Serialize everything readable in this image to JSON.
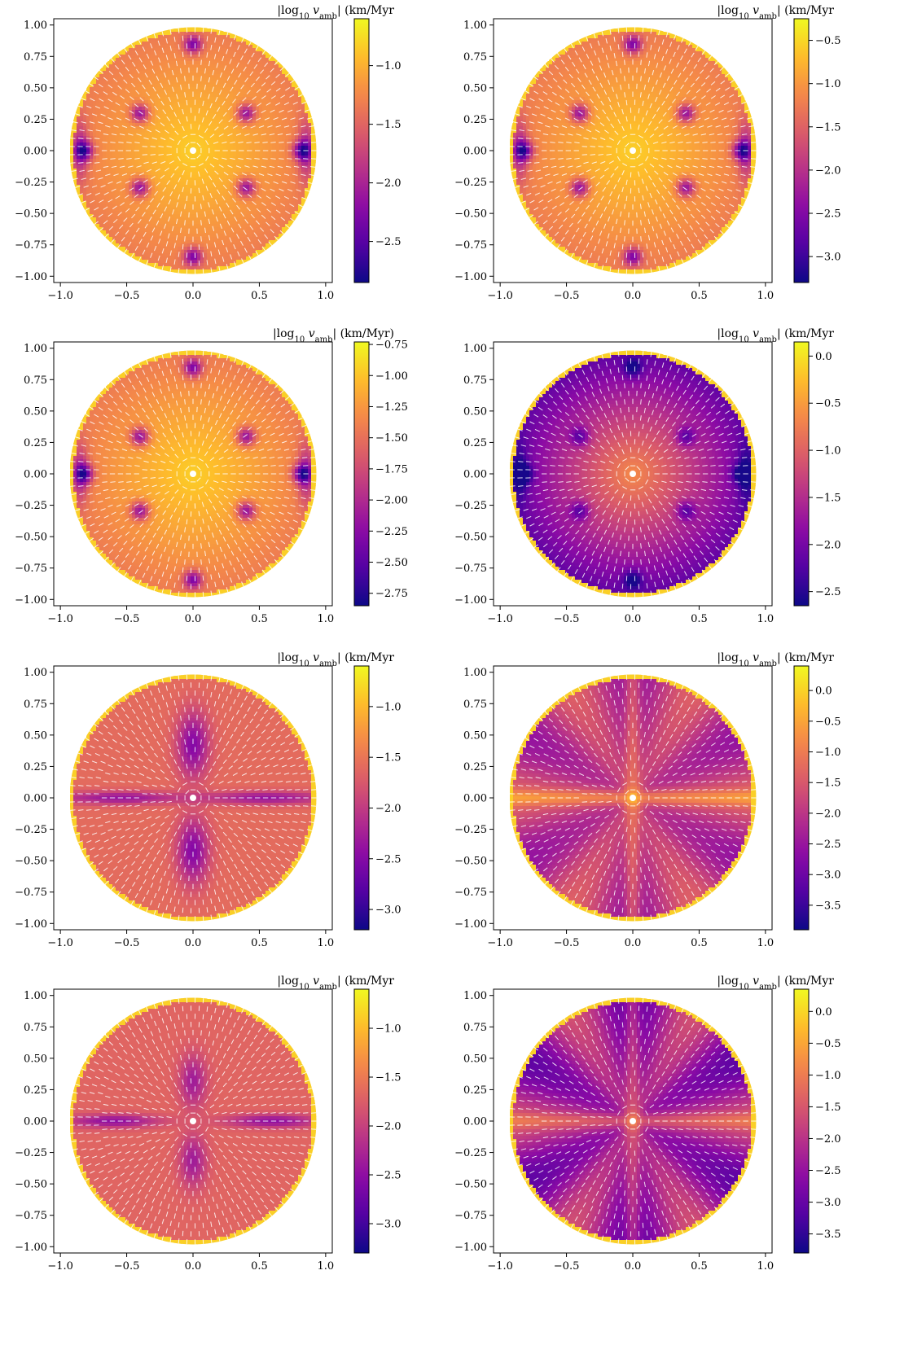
{
  "colormap": {
    "name": "plasma",
    "stops": [
      "#0d0887",
      "#5302a3",
      "#8b0aa5",
      "#b83289",
      "#db5c68",
      "#f48849",
      "#febd2a",
      "#f0f921"
    ]
  },
  "arrow_color": "#ffffff",
  "chart_data": [
    {
      "type": "heatmap",
      "panel": "row1-left",
      "colorbar_label": "|log10 v_amb| (km/Myr",
      "colorbar_range": [
        -2.85,
        -0.6
      ],
      "colorbar_ticks": [
        -1.0,
        -1.5,
        -2.0,
        -2.5
      ],
      "colorbar_tick_labels": [
        "−1.0",
        "−1.5",
        "−2.0",
        "−2.5"
      ],
      "x_ticks": [
        -1.0,
        -0.5,
        0.0,
        0.5,
        1.0
      ],
      "x_tick_labels": [
        "−1.0",
        "−0.5",
        "0.0",
        "0.5",
        "1.0"
      ],
      "y_ticks": [
        1.0,
        0.75,
        0.5,
        0.25,
        0.0,
        -0.25,
        -0.5,
        -0.75,
        -1.0
      ],
      "y_tick_labels": [
        "1.00",
        "0.75",
        "0.50",
        "0.25",
        "0.00",
        "−0.25",
        "−0.50",
        "−0.75",
        "−1.00"
      ],
      "xlim": [
        -1.05,
        1.05
      ],
      "ylim": [
        -1.05,
        1.05
      ],
      "disk_radius": 0.93,
      "pattern": "sixfold"
    },
    {
      "type": "heatmap",
      "panel": "row1-right",
      "colorbar_label": "|log10 v_amb| (km/Myr",
      "colorbar_range": [
        -3.3,
        -0.25
      ],
      "colorbar_ticks": [
        -0.5,
        -1.0,
        -1.5,
        -2.0,
        -2.5,
        -3.0
      ],
      "colorbar_tick_labels": [
        "−0.5",
        "−1.0",
        "−1.5",
        "−2.0",
        "−2.5",
        "−3.0"
      ],
      "x_ticks": [
        -1.0,
        -0.5,
        0.0,
        0.5,
        1.0
      ],
      "x_tick_labels": [
        "−1.0",
        "−0.5",
        "0.0",
        "0.5",
        "1.0"
      ],
      "y_ticks": [
        1.0,
        0.75,
        0.5,
        0.25,
        0.0,
        -0.25,
        -0.5,
        -0.75,
        -1.0
      ],
      "y_tick_labels": [
        "1.00",
        "0.75",
        "0.50",
        "0.25",
        "0.00",
        "−0.25",
        "−0.50",
        "−0.75",
        "−1.00"
      ],
      "xlim": [
        -1.05,
        1.05
      ],
      "ylim": [
        -1.05,
        1.05
      ],
      "disk_radius": 0.93,
      "pattern": "sixfold"
    },
    {
      "type": "heatmap",
      "panel": "row2-left",
      "colorbar_label": "|log10 v_amb| (km/Myr)",
      "colorbar_range": [
        -2.85,
        -0.73
      ],
      "colorbar_ticks": [
        -0.75,
        -1.0,
        -1.25,
        -1.5,
        -1.75,
        -2.0,
        -2.25,
        -2.5,
        -2.75
      ],
      "colorbar_tick_labels": [
        "−0.75",
        "−1.00",
        "−1.25",
        "−1.50",
        "−1.75",
        "−2.00",
        "−2.25",
        "−2.50",
        "−2.75"
      ],
      "x_ticks": [
        -1.0,
        -0.5,
        0.0,
        0.5,
        1.0
      ],
      "x_tick_labels": [
        "−1.0",
        "−0.5",
        "0.0",
        "0.5",
        "1.0"
      ],
      "y_ticks": [
        1.0,
        0.75,
        0.5,
        0.25,
        0.0,
        -0.25,
        -0.5,
        -0.75,
        -1.0
      ],
      "y_tick_labels": [
        "1.00",
        "0.75",
        "0.50",
        "0.25",
        "0.00",
        "−0.25",
        "−0.50",
        "−0.75",
        "−1.00"
      ],
      "xlim": [
        -1.05,
        1.05
      ],
      "ylim": [
        -1.05,
        1.05
      ],
      "disk_radius": 0.93,
      "pattern": "sixfold"
    },
    {
      "type": "heatmap",
      "panel": "row2-right",
      "colorbar_label": "|log10 v_amb| (km/Myr",
      "colorbar_range": [
        -2.65,
        0.15
      ],
      "colorbar_ticks": [
        0.0,
        -0.5,
        -1.0,
        -1.5,
        -2.0,
        -2.5
      ],
      "colorbar_tick_labels": [
        "0.0",
        "−0.5",
        "−1.0",
        "−1.5",
        "−2.0",
        "−2.5"
      ],
      "x_ticks": [
        -1.0,
        -0.5,
        0.0,
        0.5,
        1.0
      ],
      "x_tick_labels": [
        "−1.0",
        "−0.5",
        "0.0",
        "0.5",
        "1.0"
      ],
      "y_ticks": [
        1.0,
        0.75,
        0.5,
        0.25,
        0.0,
        -0.25,
        -0.5,
        -0.75,
        -1.0
      ],
      "y_tick_labels": [
        "1.00",
        "0.75",
        "0.50",
        "0.25",
        "0.00",
        "−0.25",
        "−0.50",
        "−0.75",
        "−1.00"
      ],
      "xlim": [
        -1.05,
        1.05
      ],
      "ylim": [
        -1.05,
        1.05
      ],
      "disk_radius": 0.93,
      "pattern": "sixfold-dim"
    },
    {
      "type": "heatmap",
      "panel": "row3-left",
      "colorbar_label": "|log10 v_amb| (km/Myr",
      "colorbar_range": [
        -3.2,
        -0.6
      ],
      "colorbar_ticks": [
        -1.0,
        -1.5,
        -2.0,
        -2.5,
        -3.0
      ],
      "colorbar_tick_labels": [
        "−1.0",
        "−1.5",
        "−2.0",
        "−2.5",
        "−3.0"
      ],
      "x_ticks": [
        -1.0,
        -0.5,
        0.0,
        0.5,
        1.0
      ],
      "x_tick_labels": [
        "−1.0",
        "−0.5",
        "0.0",
        "0.5",
        "1.0"
      ],
      "y_ticks": [
        1.0,
        0.75,
        0.5,
        0.25,
        0.0,
        -0.25,
        -0.5,
        -0.75,
        -1.0
      ],
      "y_tick_labels": [
        "1.00",
        "0.75",
        "0.50",
        "0.25",
        "0.00",
        "−0.25",
        "−0.50",
        "−0.75",
        "−1.00"
      ],
      "xlim": [
        -1.05,
        1.05
      ],
      "ylim": [
        -1.05,
        1.05
      ],
      "disk_radius": 0.93,
      "pattern": "cross"
    },
    {
      "type": "heatmap",
      "panel": "row3-right",
      "colorbar_label": "|log10 v_amb| (km/Myr",
      "colorbar_range": [
        -3.9,
        0.4
      ],
      "colorbar_ticks": [
        0.0,
        -0.5,
        -1.0,
        -1.5,
        -2.0,
        -2.5,
        -3.0,
        -3.5
      ],
      "colorbar_tick_labels": [
        "0.0",
        "−0.5",
        "−1.0",
        "−1.5",
        "−2.0",
        "−2.5",
        "−3.0",
        "−3.5"
      ],
      "x_ticks": [
        -1.0,
        -0.5,
        0.0,
        0.5,
        1.0
      ],
      "x_tick_labels": [
        "−1.0",
        "−0.5",
        "0.0",
        "0.5",
        "1.0"
      ],
      "y_ticks": [
        1.0,
        0.75,
        0.5,
        0.25,
        0.0,
        -0.25,
        -0.5,
        -0.75,
        -1.0
      ],
      "y_tick_labels": [
        "1.00",
        "0.75",
        "0.50",
        "0.25",
        "0.00",
        "−0.25",
        "−0.50",
        "−0.75",
        "−1.00"
      ],
      "xlim": [
        -1.05,
        1.05
      ],
      "ylim": [
        -1.05,
        1.05
      ],
      "disk_radius": 0.93,
      "pattern": "grid"
    },
    {
      "type": "heatmap",
      "panel": "row4-left",
      "colorbar_label": "|log10 v_amb| (km/Myr",
      "colorbar_range": [
        -3.3,
        -0.6
      ],
      "colorbar_ticks": [
        -1.0,
        -1.5,
        -2.0,
        -2.5,
        -3.0
      ],
      "colorbar_tick_labels": [
        "−1.0",
        "−1.5",
        "−2.0",
        "−2.5",
        "−3.0"
      ],
      "x_ticks": [
        -1.0,
        -0.5,
        0.0,
        0.5,
        1.0
      ],
      "x_tick_labels": [
        "−1.0",
        "−0.5",
        "0.0",
        "0.5",
        "1.0"
      ],
      "y_ticks": [
        1.0,
        0.75,
        0.5,
        0.25,
        0.0,
        -0.25,
        -0.5,
        -0.75,
        -1.0
      ],
      "y_tick_labels": [
        "1.00",
        "0.75",
        "0.50",
        "0.25",
        "0.00",
        "−0.25",
        "−0.50",
        "−0.75",
        "−1.00"
      ],
      "xlim": [
        -1.05,
        1.05
      ],
      "ylim": [
        -1.05,
        1.05
      ],
      "disk_radius": 0.93,
      "pattern": "hcross"
    },
    {
      "type": "heatmap",
      "panel": "row4-right",
      "colorbar_label": "|log10 v_amb| (km/Myr",
      "colorbar_range": [
        -3.8,
        0.35
      ],
      "colorbar_ticks": [
        0.0,
        -0.5,
        -1.0,
        -1.5,
        -2.0,
        -2.5,
        -3.0,
        -3.5
      ],
      "colorbar_tick_labels": [
        "0.0",
        "−0.5",
        "−1.0",
        "−1.5",
        "−2.0",
        "−2.5",
        "−3.0",
        "−3.5"
      ],
      "x_ticks": [
        -1.0,
        -0.5,
        0.0,
        0.5,
        1.0
      ],
      "x_tick_labels": [
        "−1.0",
        "−0.5",
        "0.0",
        "0.5",
        "1.0"
      ],
      "y_ticks": [
        1.0,
        0.75,
        0.5,
        0.25,
        0.0,
        -0.25,
        -0.5,
        -0.75,
        -1.0
      ],
      "y_tick_labels": [
        "1.00",
        "0.75",
        "0.50",
        "0.25",
        "0.00",
        "−0.25",
        "−0.50",
        "−0.75",
        "−1.00"
      ],
      "xlim": [
        -1.05,
        1.05
      ],
      "ylim": [
        -1.05,
        1.05
      ],
      "disk_radius": 0.93,
      "pattern": "grid-dim"
    }
  ]
}
